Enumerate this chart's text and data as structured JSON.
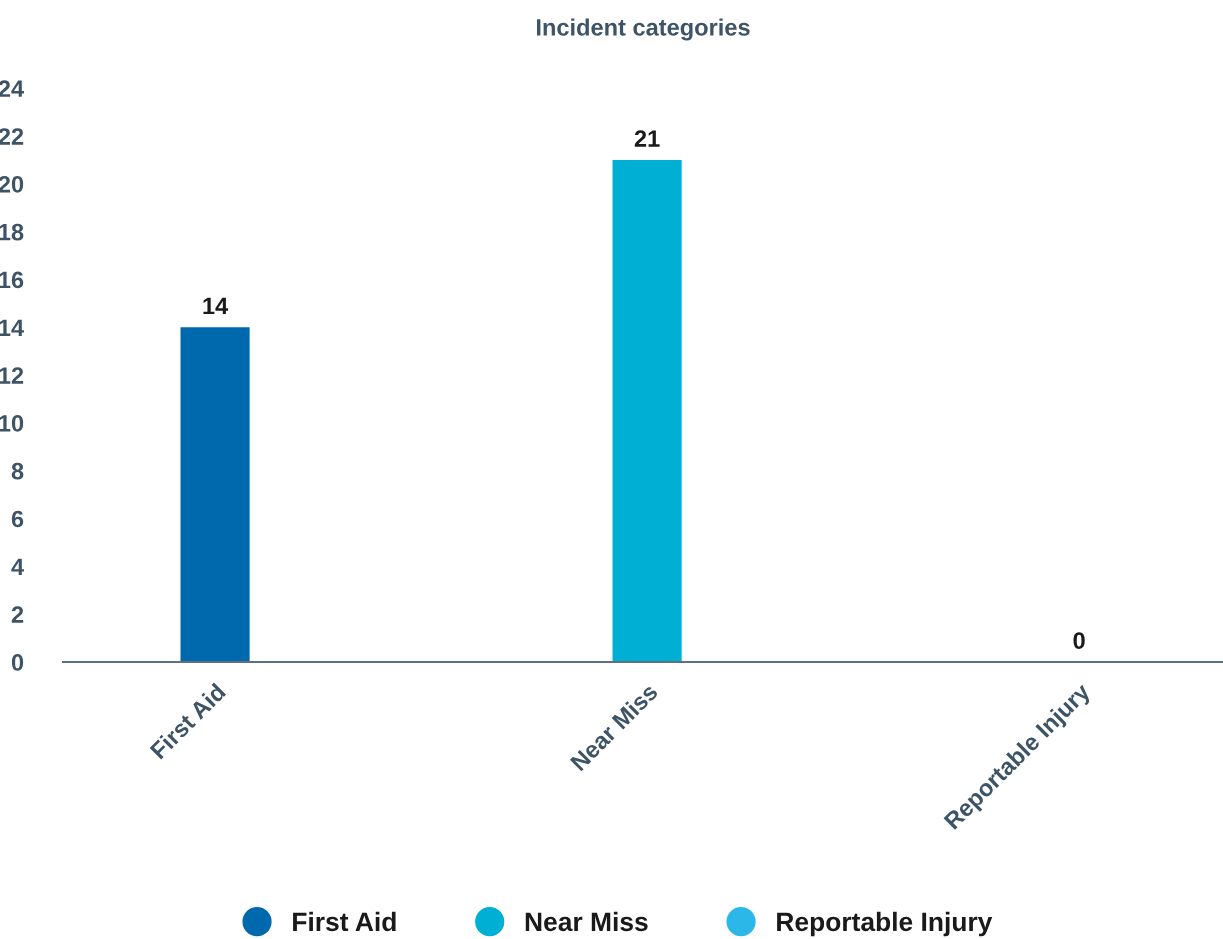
{
  "chart_data": {
    "type": "bar",
    "title": "Incident categories",
    "categories": [
      "First Aid",
      "Near Miss",
      "Reportable Injury"
    ],
    "series": [
      {
        "name": "First Aid",
        "color": "#0069ad",
        "values": [
          14,
          null,
          null
        ]
      },
      {
        "name": "Near Miss",
        "color": "#00afd4",
        "values": [
          null,
          21,
          null
        ]
      },
      {
        "name": "Reportable Injury",
        "color": "#2bb8e8",
        "values": [
          null,
          null,
          0
        ]
      }
    ],
    "ylim": [
      0,
      24
    ],
    "yticks": [
      0,
      2,
      4,
      6,
      8,
      10,
      12,
      14,
      16,
      18,
      20,
      22,
      24
    ],
    "data_labels": true,
    "grid": false,
    "legend": "bottom"
  }
}
